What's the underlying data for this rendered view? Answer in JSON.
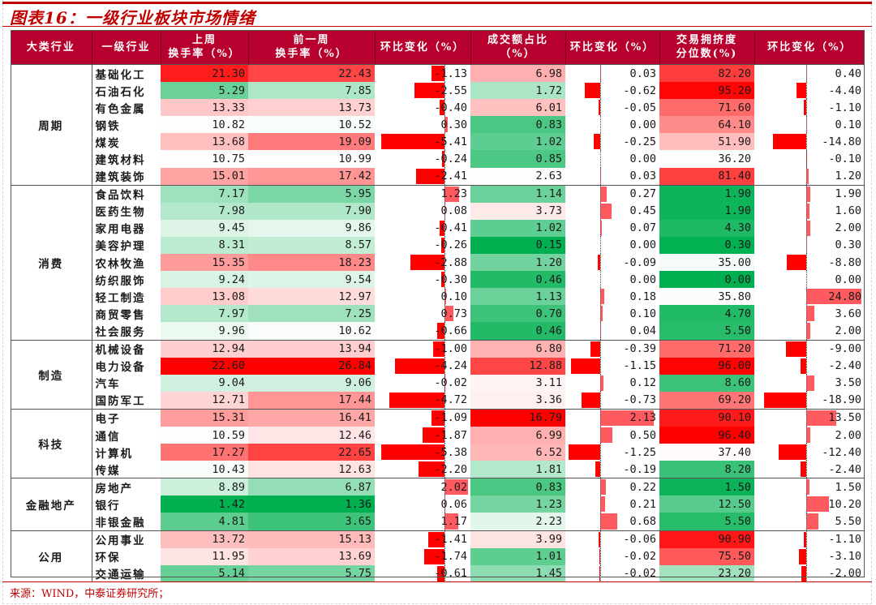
{
  "title": "图表16：一级行业板块市场情绪",
  "source": "来源：WIND，中泰证券研究所；",
  "colors": {
    "header_bg": "#b7002d",
    "title_red": "#c00000",
    "bar_neg": "#ff0000",
    "bar_pos": "#ff5a5f"
  },
  "headers": {
    "category": "大类行业",
    "industry": "一级行业",
    "last_week_l1": "上周",
    "last_week_l2": "换手率（%）",
    "prev_week_l1": "前一周",
    "prev_week_l2": "换手率（%）",
    "turnover_chg": "环比变化（%）",
    "amount_share_l1": "成交额占比",
    "amount_share_l2": "（%）",
    "amount_chg": "环比变化（%）",
    "crowding_l1": "交易拥挤度",
    "crowding_l2": "分位数(%)",
    "crowding_chg": "环比变化（%）"
  },
  "groups": [
    {
      "name": "周期",
      "rows": [
        {
          "ind": "基础化工",
          "lw": "21.30",
          "pw": "22.43",
          "tc": "-1.13",
          "as": "6.98",
          "ac": "0.03",
          "cr": "82.20",
          "cc": "0.40"
        },
        {
          "ind": "石油石化",
          "lw": "5.29",
          "pw": "7.85",
          "tc": "-2.55",
          "as": "1.72",
          "ac": "-0.62",
          "cr": "95.20",
          "cc": "-4.40"
        },
        {
          "ind": "有色金属",
          "lw": "13.33",
          "pw": "13.73",
          "tc": "-0.40",
          "as": "6.01",
          "ac": "-0.05",
          "cr": "71.60",
          "cc": "-1.10"
        },
        {
          "ind": "钢铁",
          "lw": "10.82",
          "pw": "10.52",
          "tc": "0.30",
          "as": "0.83",
          "ac": "0.00",
          "cr": "64.10",
          "cc": "0.10"
        },
        {
          "ind": "煤炭",
          "lw": "13.68",
          "pw": "19.09",
          "tc": "-5.41",
          "as": "1.02",
          "ac": "-0.25",
          "cr": "51.90",
          "cc": "-14.80"
        },
        {
          "ind": "建筑材料",
          "lw": "10.75",
          "pw": "10.99",
          "tc": "-0.24",
          "as": "0.85",
          "ac": "0.00",
          "cr": "36.20",
          "cc": "-0.10"
        },
        {
          "ind": "建筑装饰",
          "lw": "15.01",
          "pw": "17.42",
          "tc": "-2.41",
          "as": "2.63",
          "ac": "0.03",
          "cr": "81.40",
          "cc": "1.20"
        }
      ]
    },
    {
      "name": "消费",
      "rows": [
        {
          "ind": "食品饮料",
          "lw": "7.17",
          "pw": "5.95",
          "tc": "1.23",
          "as": "1.14",
          "ac": "0.27",
          "cr": "1.90",
          "cc": "1.90"
        },
        {
          "ind": "医药生物",
          "lw": "7.98",
          "pw": "7.90",
          "tc": "0.08",
          "as": "3.73",
          "ac": "0.45",
          "cr": "1.90",
          "cc": "1.60"
        },
        {
          "ind": "家用电器",
          "lw": "9.45",
          "pw": "9.86",
          "tc": "-0.41",
          "as": "1.02",
          "ac": "0.07",
          "cr": "4.30",
          "cc": "2.00"
        },
        {
          "ind": "美容护理",
          "lw": "8.31",
          "pw": "8.57",
          "tc": "-0.26",
          "as": "0.15",
          "ac": "0.00",
          "cr": "0.30",
          "cc": "0.30"
        },
        {
          "ind": "农林牧渔",
          "lw": "15.35",
          "pw": "18.23",
          "tc": "-2.88",
          "as": "1.20",
          "ac": "-0.09",
          "cr": "35.00",
          "cc": "-8.80"
        },
        {
          "ind": "纺织服饰",
          "lw": "9.24",
          "pw": "9.54",
          "tc": "-0.30",
          "as": "0.46",
          "ac": "0.00",
          "cr": "0.00",
          "cc": "0.00"
        },
        {
          "ind": "轻工制造",
          "lw": "13.08",
          "pw": "12.97",
          "tc": "0.10",
          "as": "1.13",
          "ac": "0.18",
          "cr": "35.80",
          "cc": "24.80"
        },
        {
          "ind": "商贸零售",
          "lw": "7.97",
          "pw": "7.25",
          "tc": "0.73",
          "as": "0.70",
          "ac": "0.10",
          "cr": "4.70",
          "cc": "3.60"
        },
        {
          "ind": "社会服务",
          "lw": "9.96",
          "pw": "10.62",
          "tc": "-0.66",
          "as": "0.46",
          "ac": "0.04",
          "cr": "5.50",
          "cc": "2.00"
        }
      ]
    },
    {
      "name": "制造",
      "rows": [
        {
          "ind": "机械设备",
          "lw": "12.94",
          "pw": "13.94",
          "tc": "-1.00",
          "as": "6.80",
          "ac": "-0.39",
          "cr": "71.20",
          "cc": "-9.00"
        },
        {
          "ind": "电力设备",
          "lw": "22.60",
          "pw": "26.84",
          "tc": "-4.24",
          "as": "12.88",
          "ac": "-1.15",
          "cr": "96.00",
          "cc": "-2.40"
        },
        {
          "ind": "汽车",
          "lw": "9.04",
          "pw": "9.06",
          "tc": "-0.02",
          "as": "3.11",
          "ac": "0.12",
          "cr": "8.60",
          "cc": "3.50"
        },
        {
          "ind": "国防军工",
          "lw": "12.71",
          "pw": "17.44",
          "tc": "-4.72",
          "as": "3.36",
          "ac": "-0.73",
          "cr": "69.20",
          "cc": "-18.90"
        }
      ]
    },
    {
      "name": "科技",
      "rows": [
        {
          "ind": "电子",
          "lw": "15.31",
          "pw": "16.41",
          "tc": "-1.09",
          "as": "16.79",
          "ac": "2.13",
          "cr": "90.10",
          "cc": "13.50"
        },
        {
          "ind": "通信",
          "lw": "10.59",
          "pw": "12.46",
          "tc": "-1.87",
          "as": "6.99",
          "ac": "0.50",
          "cr": "96.40",
          "cc": "2.00"
        },
        {
          "ind": "计算机",
          "lw": "17.27",
          "pw": "22.65",
          "tc": "-5.38",
          "as": "6.52",
          "ac": "-1.25",
          "cr": "37.40",
          "cc": "-12.40"
        },
        {
          "ind": "传媒",
          "lw": "10.43",
          "pw": "12.63",
          "tc": "-2.20",
          "as": "1.81",
          "ac": "-0.19",
          "cr": "8.20",
          "cc": "-2.40"
        }
      ]
    },
    {
      "name": "金融地产",
      "rows": [
        {
          "ind": "房地产",
          "lw": "8.89",
          "pw": "6.87",
          "tc": "2.02",
          "as": "0.83",
          "ac": "0.22",
          "cr": "1.50",
          "cc": "1.50"
        },
        {
          "ind": "银行",
          "lw": "1.42",
          "pw": "1.36",
          "tc": "0.06",
          "as": "1.23",
          "ac": "0.21",
          "cr": "12.50",
          "cc": "10.20"
        },
        {
          "ind": "非银金融",
          "lw": "4.81",
          "pw": "3.65",
          "tc": "1.17",
          "as": "2.23",
          "ac": "0.68",
          "cr": "5.50",
          "cc": "5.50"
        }
      ]
    },
    {
      "name": "公用",
      "rows": [
        {
          "ind": "公用事业",
          "lw": "13.72",
          "pw": "15.13",
          "tc": "-1.41",
          "as": "3.99",
          "ac": "-0.06",
          "cr": "90.90",
          "cc": "-1.10"
        },
        {
          "ind": "环保",
          "lw": "11.95",
          "pw": "13.69",
          "tc": "-1.74",
          "as": "1.01",
          "ac": "-0.02",
          "cr": "75.50",
          "cc": "-3.10"
        },
        {
          "ind": "交通运输",
          "lw": "5.14",
          "pw": "5.75",
          "tc": "-0.61",
          "as": "1.45",
          "ac": "-0.02",
          "cr": "23.20",
          "cc": "-2.00"
        }
      ]
    }
  ]
}
